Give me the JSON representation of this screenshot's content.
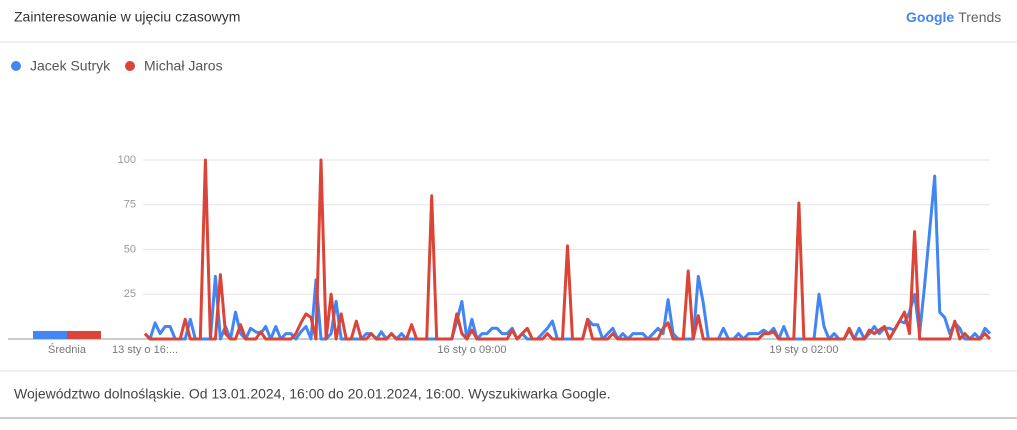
{
  "header": {
    "title": "Zainteresowanie w ujęciu czasowym",
    "logo_brand": "Google",
    "logo_product": "Trends"
  },
  "chart_data": {
    "type": "line",
    "average_label": "Średnia",
    "categories": [
      "13 sty o 16:...",
      null,
      null,
      null,
      null,
      null,
      null,
      null,
      null,
      null,
      null,
      null,
      null,
      null,
      null,
      null,
      null,
      null,
      null,
      null,
      null,
      null,
      null,
      null,
      null,
      null,
      null,
      null,
      null,
      null,
      null,
      null,
      null,
      null,
      null,
      null,
      null,
      null,
      null,
      null,
      null,
      null,
      null,
      null,
      null,
      null,
      null,
      null,
      null,
      null,
      null,
      null,
      null,
      null,
      null,
      null,
      null,
      null,
      null,
      null,
      null,
      null,
      null,
      null,
      null,
      "16 sty o 09:00",
      null,
      null,
      null,
      null,
      null,
      null,
      null,
      null,
      null,
      null,
      null,
      null,
      null,
      null,
      null,
      null,
      null,
      null,
      null,
      null,
      null,
      null,
      null,
      null,
      null,
      null,
      null,
      null,
      null,
      null,
      null,
      null,
      null,
      null,
      null,
      null,
      null,
      null,
      null,
      null,
      null,
      null,
      null,
      null,
      null,
      null,
      null,
      null,
      null,
      null,
      null,
      null,
      null,
      null,
      null,
      null,
      null,
      null,
      null,
      null,
      null,
      null,
      null,
      null,
      null,
      "19 sty o 02:00",
      null,
      null,
      null,
      null,
      null,
      null,
      null,
      null,
      null,
      null,
      null,
      null,
      null,
      null,
      null,
      null,
      null,
      null,
      null,
      null,
      null,
      null,
      null,
      null,
      null,
      null,
      null,
      null,
      null,
      null,
      null,
      null,
      null,
      null,
      null,
      null,
      null
    ],
    "series": [
      {
        "name": "Jacek Sutryk",
        "color": "#4285f4",
        "average": 4.5,
        "values": [
          3,
          0,
          9,
          3,
          7,
          7,
          0,
          0,
          0,
          11,
          0,
          0,
          0,
          0,
          35,
          0,
          7,
          0,
          15,
          3,
          0,
          6,
          4,
          3,
          7,
          0,
          7,
          0,
          3,
          3,
          0,
          4,
          7,
          0,
          33,
          0,
          0,
          3,
          21,
          0,
          0,
          0,
          0,
          0,
          3,
          3,
          0,
          4,
          0,
          3,
          0,
          3,
          0,
          0,
          0,
          0,
          0,
          0,
          0,
          0,
          0,
          0,
          10,
          21,
          0,
          11,
          0,
          3,
          3,
          6,
          6,
          3,
          3,
          6,
          0,
          3,
          0,
          0,
          0,
          3,
          6,
          10,
          0,
          0,
          0,
          0,
          0,
          0,
          11,
          8,
          8,
          0,
          3,
          6,
          0,
          3,
          0,
          3,
          3,
          3,
          0,
          3,
          6,
          3,
          22,
          3,
          0,
          0,
          0,
          0,
          35,
          20,
          0,
          0,
          0,
          6,
          0,
          0,
          3,
          0,
          3,
          3,
          3,
          5,
          3,
          6,
          0,
          7,
          0,
          0,
          0,
          0,
          0,
          0,
          25,
          7,
          0,
          3,
          0,
          0,
          5,
          0,
          6,
          0,
          3,
          7,
          3,
          6,
          6,
          5,
          10,
          9,
          15,
          25,
          3,
          30,
          60,
          91,
          15,
          12,
          3,
          9,
          6,
          0,
          0,
          3,
          0,
          6,
          3
        ]
      },
      {
        "name": "Michał Jaros",
        "color": "#db4437",
        "average": 4.5,
        "values": [
          3,
          0,
          0,
          0,
          0,
          0,
          0,
          0,
          11,
          0,
          0,
          0,
          100,
          0,
          0,
          36,
          3,
          0,
          0,
          8,
          0,
          0,
          0,
          4,
          0,
          0,
          0,
          0,
          0,
          0,
          3,
          9,
          14,
          12,
          0,
          100,
          0,
          25,
          0,
          14,
          0,
          0,
          10,
          0,
          0,
          3,
          0,
          0,
          0,
          3,
          0,
          0,
          0,
          8,
          0,
          0,
          0,
          80,
          0,
          0,
          0,
          0,
          14,
          3,
          0,
          5,
          0,
          0,
          0,
          0,
          0,
          0,
          0,
          5,
          0,
          3,
          6,
          0,
          0,
          0,
          3,
          0,
          0,
          0,
          52,
          0,
          0,
          0,
          11,
          0,
          0,
          0,
          0,
          3,
          0,
          0,
          0,
          0,
          0,
          0,
          0,
          0,
          0,
          6,
          9,
          0,
          0,
          0,
          38,
          0,
          13,
          0,
          0,
          0,
          0,
          0,
          0,
          0,
          0,
          0,
          0,
          0,
          0,
          3,
          3,
          4,
          0,
          0,
          0,
          0,
          76,
          0,
          0,
          0,
          0,
          0,
          0,
          0,
          0,
          0,
          6,
          0,
          0,
          0,
          5,
          3,
          5,
          7,
          0,
          5,
          10,
          15,
          3,
          60,
          0,
          0,
          0,
          0,
          0,
          0,
          0,
          10,
          0,
          3,
          0,
          0,
          0,
          3,
          0
        ]
      }
    ],
    "ylim": [
      0,
      100
    ],
    "yticks": [
      25,
      50,
      75,
      100
    ],
    "grid": true
  },
  "footer": {
    "text": "Województwo dolnośląskie. Od 13.01.2024, 16:00 do 20.01.2024, 16:00. Wyszukiwarka Google."
  }
}
